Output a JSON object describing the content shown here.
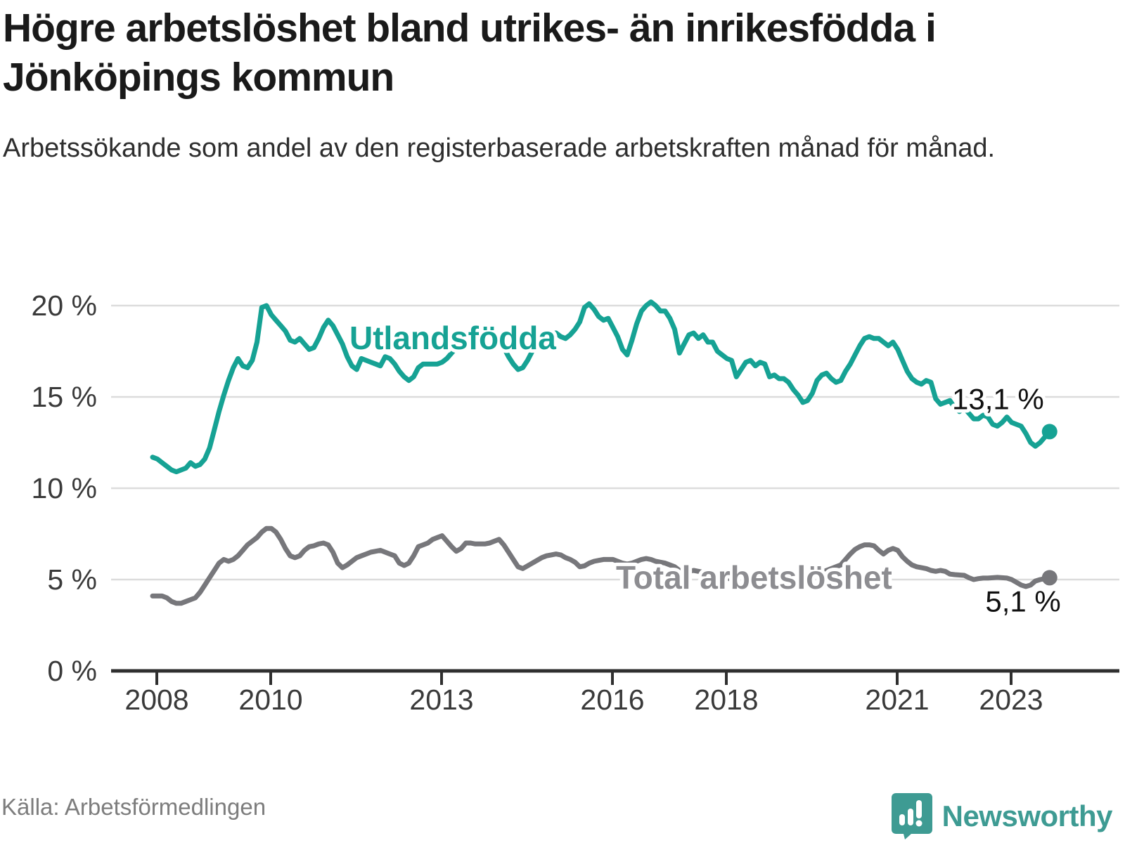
{
  "header": {
    "title": "Högre arbetslöshet bland utrikes- än inrikesfödda i Jönköpings kommun",
    "subtitle": "Arbetssökande som andel av den registerbaserade arbetskraften månad för månad."
  },
  "footer": {
    "source": "Källa: Arbetsförmedlingen",
    "brand": "Newsworthy"
  },
  "colors": {
    "foreign_born_line": "#16a294",
    "total_line": "#77777b",
    "total_label": "#8d8d91",
    "axis": "#2f2f2f",
    "axis_text": "#3a3a3a",
    "grid": "#dcdcdc",
    "end_label_text": "#111111",
    "title_text": "#1a1a1a",
    "brand_teal": "#3e9b93"
  },
  "chart_data": {
    "type": "line",
    "unit": "%",
    "frequency": "monthly",
    "start": "2008-01",
    "end": "2023-10",
    "grid": "horizontal gridlines at 0,5,10,15,20",
    "legend_position": "inline labels on lines",
    "ylim": [
      0,
      20
    ],
    "y_ticks": [
      {
        "value": 0,
        "label": "0 %"
      },
      {
        "value": 5,
        "label": "5 %"
      },
      {
        "value": 10,
        "label": "10 %"
      },
      {
        "value": 15,
        "label": "15 %"
      },
      {
        "value": 20,
        "label": "20 %"
      }
    ],
    "x_ticks": [
      {
        "year": 2008,
        "label": "2008"
      },
      {
        "year": 2010,
        "label": "2010"
      },
      {
        "year": 2013,
        "label": "2013"
      },
      {
        "year": 2016,
        "label": "2016"
      },
      {
        "year": 2018,
        "label": "2018"
      },
      {
        "year": 2021,
        "label": "2021"
      },
      {
        "year": 2023,
        "label": "2023"
      }
    ],
    "series": [
      {
        "id": "utlandsfodda",
        "name": "Utlandsfödda",
        "end_label": "13,1 %",
        "color": "#16a294",
        "values": [
          11.7,
          11.6,
          11.4,
          11.2,
          11.0,
          10.9,
          11.0,
          11.1,
          11.4,
          11.2,
          11.3,
          11.6,
          12.2,
          13.2,
          14.2,
          15.1,
          15.9,
          16.6,
          17.1,
          16.7,
          16.6,
          17.0,
          18.0,
          19.9,
          20.0,
          19.5,
          19.2,
          18.9,
          18.6,
          18.1,
          18.0,
          18.2,
          17.9,
          17.6,
          17.7,
          18.2,
          18.8,
          19.2,
          18.9,
          18.4,
          17.9,
          17.2,
          16.7,
          16.5,
          17.1,
          17.0,
          16.9,
          16.8,
          16.7,
          17.2,
          17.1,
          16.8,
          16.4,
          16.1,
          15.9,
          16.1,
          16.6,
          16.8,
          16.8,
          16.8,
          16.8,
          16.9,
          17.1,
          17.4,
          17.7,
          17.9,
          18.1,
          18.3,
          18.5,
          18.8,
          18.9,
          18.8,
          18.6,
          18.2,
          17.7,
          17.2,
          16.8,
          16.5,
          16.6,
          17.0,
          17.5,
          18.0,
          18.4,
          18.6,
          18.5,
          18.5,
          18.3,
          18.2,
          18.4,
          18.7,
          19.1,
          19.9,
          20.1,
          19.8,
          19.4,
          19.2,
          19.3,
          18.8,
          18.3,
          17.6,
          17.3,
          18.1,
          19.0,
          19.7,
          20.0,
          20.2,
          20.0,
          19.7,
          19.7,
          19.3,
          18.7,
          17.4,
          17.9,
          18.4,
          18.5,
          18.2,
          18.4,
          18.0,
          18.0,
          17.5,
          17.3,
          17.1,
          17.0,
          16.1,
          16.5,
          16.9,
          17.0,
          16.7,
          16.9,
          16.8,
          16.1,
          16.2,
          16.0,
          16.0,
          15.8,
          15.4,
          15.1,
          14.7,
          14.8,
          15.2,
          15.9,
          16.2,
          16.3,
          16.0,
          15.8,
          15.9,
          16.4,
          16.8,
          17.3,
          17.8,
          18.2,
          18.3,
          18.2,
          18.2,
          18.0,
          17.8,
          18.0,
          17.6,
          17.0,
          16.4,
          16.0,
          15.8,
          15.7,
          15.9,
          15.8,
          14.9,
          14.6,
          14.7,
          14.8,
          14.4,
          14.2,
          14.4,
          14.1,
          13.8,
          13.8,
          14.0,
          13.9,
          13.5,
          13.4,
          13.6,
          13.9,
          13.6,
          13.5,
          13.4,
          13.0,
          12.5,
          12.3,
          12.5,
          12.8,
          13.1
        ]
      },
      {
        "id": "total",
        "name": "Total arbetslöshet",
        "end_label": "5,1 %",
        "color": "#77777b",
        "values": [
          4.1,
          4.1,
          4.1,
          4.0,
          3.8,
          3.7,
          3.7,
          3.8,
          3.9,
          4.0,
          4.3,
          4.7,
          5.1,
          5.5,
          5.9,
          6.1,
          6.0,
          6.1,
          6.3,
          6.6,
          6.9,
          7.1,
          7.3,
          7.6,
          7.8,
          7.8,
          7.6,
          7.2,
          6.7,
          6.3,
          6.2,
          6.3,
          6.6,
          6.8,
          6.85,
          6.95,
          7.0,
          6.9,
          6.5,
          5.9,
          5.65,
          5.8,
          6.0,
          6.2,
          6.3,
          6.4,
          6.5,
          6.55,
          6.6,
          6.5,
          6.4,
          6.3,
          5.9,
          5.77,
          5.9,
          6.3,
          6.8,
          6.9,
          7.0,
          7.2,
          7.3,
          7.4,
          7.1,
          6.8,
          6.55,
          6.7,
          7.0,
          7.0,
          6.95,
          6.95,
          6.95,
          7.0,
          7.1,
          7.2,
          6.9,
          6.5,
          6.1,
          5.7,
          5.6,
          5.75,
          5.9,
          6.05,
          6.2,
          6.3,
          6.35,
          6.4,
          6.35,
          6.2,
          6.1,
          5.95,
          5.7,
          5.75,
          5.9,
          6.0,
          6.05,
          6.1,
          6.1,
          6.1,
          6.0,
          5.9,
          5.85,
          5.9,
          6.0,
          6.1,
          6.15,
          6.1,
          6.0,
          5.95,
          5.9,
          5.8,
          5.7,
          5.5,
          5.4,
          5.45,
          5.5,
          5.45,
          5.4,
          5.3,
          5.25,
          5.2,
          5.15,
          5.1,
          5.0,
          4.95,
          4.9,
          5.0,
          5.05,
          5.1,
          5.1,
          5.05,
          5.0,
          5.1,
          5.15,
          5.2,
          5.15,
          5.1,
          5.05,
          5.1,
          5.15,
          5.2,
          5.3,
          5.4,
          5.5,
          5.6,
          5.7,
          5.8,
          6.1,
          6.4,
          6.65,
          6.8,
          6.9,
          6.9,
          6.85,
          6.6,
          6.4,
          6.6,
          6.7,
          6.6,
          6.25,
          6.0,
          5.8,
          5.7,
          5.65,
          5.6,
          5.5,
          5.45,
          5.5,
          5.45,
          5.3,
          5.27,
          5.25,
          5.23,
          5.1,
          5.0,
          5.05,
          5.08,
          5.08,
          5.1,
          5.12,
          5.1,
          5.08,
          5.0,
          4.85,
          4.7,
          4.62,
          4.7,
          4.92,
          5.0,
          5.05,
          5.1
        ]
      }
    ]
  }
}
